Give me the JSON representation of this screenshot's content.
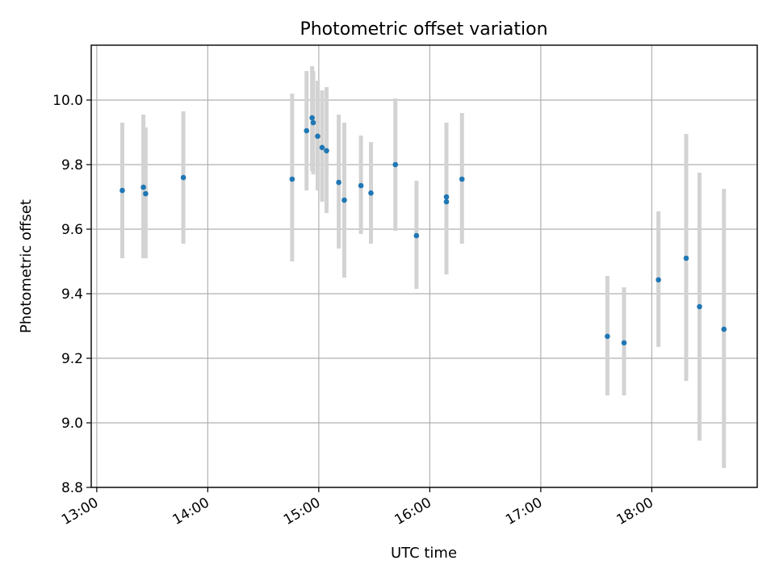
{
  "chart_data": {
    "type": "scatter",
    "title": "Photometric offset variation",
    "xlabel": "UTC time",
    "ylabel": "Photometric offset",
    "x_unit": "hours_utc",
    "xlim": [
      12.95,
      18.95
    ],
    "ylim": [
      8.8,
      10.17
    ],
    "xticks": [
      13,
      14,
      15,
      16,
      17,
      18
    ],
    "xtick_labels": [
      "13:00",
      "14:00",
      "15:00",
      "16:00",
      "17:00",
      "18:00"
    ],
    "yticks": [
      8.8,
      9.0,
      9.2,
      9.4,
      9.6,
      9.8,
      10.0
    ],
    "ytick_labels": [
      "8.8",
      "9.0",
      "9.2",
      "9.4",
      "9.6",
      "9.8",
      "10.0"
    ],
    "grid": true,
    "marker_color": "#1f77b4",
    "errorbar_color": "#d3d3d3",
    "points": [
      {
        "x": 13.23,
        "y": 9.72,
        "ylow": 9.51,
        "yhigh": 9.93
      },
      {
        "x": 13.42,
        "y": 9.73,
        "ylow": 9.51,
        "yhigh": 9.955
      },
      {
        "x": 13.44,
        "y": 9.71,
        "ylow": 9.51,
        "yhigh": 9.915
      },
      {
        "x": 13.78,
        "y": 9.76,
        "ylow": 9.555,
        "yhigh": 9.965
      },
      {
        "x": 14.76,
        "y": 9.755,
        "ylow": 9.5,
        "yhigh": 10.02
      },
      {
        "x": 14.89,
        "y": 9.905,
        "ylow": 9.72,
        "yhigh": 10.09
      },
      {
        "x": 14.94,
        "y": 9.945,
        "ylow": 9.78,
        "yhigh": 10.105
      },
      {
        "x": 14.95,
        "y": 9.93,
        "ylow": 9.77,
        "yhigh": 10.09
      },
      {
        "x": 14.99,
        "y": 9.888,
        "ylow": 9.72,
        "yhigh": 10.06
      },
      {
        "x": 15.03,
        "y": 9.853,
        "ylow": 9.685,
        "yhigh": 10.03
      },
      {
        "x": 15.07,
        "y": 9.843,
        "ylow": 9.65,
        "yhigh": 10.04
      },
      {
        "x": 15.18,
        "y": 9.745,
        "ylow": 9.54,
        "yhigh": 9.955
      },
      {
        "x": 15.23,
        "y": 9.69,
        "ylow": 9.45,
        "yhigh": 9.93
      },
      {
        "x": 15.38,
        "y": 9.735,
        "ylow": 9.585,
        "yhigh": 9.89
      },
      {
        "x": 15.47,
        "y": 9.712,
        "ylow": 9.555,
        "yhigh": 9.87
      },
      {
        "x": 15.69,
        "y": 9.8,
        "ylow": 9.595,
        "yhigh": 10.005
      },
      {
        "x": 15.88,
        "y": 9.58,
        "ylow": 9.415,
        "yhigh": 9.75
      },
      {
        "x": 16.15,
        "y": 9.685,
        "ylow": 9.46,
        "yhigh": 9.93
      },
      {
        "x": 16.15,
        "y": 9.7,
        "ylow": 9.46,
        "yhigh": 9.93
      },
      {
        "x": 16.29,
        "y": 9.755,
        "ylow": 9.555,
        "yhigh": 9.96
      },
      {
        "x": 17.6,
        "y": 9.268,
        "ylow": 9.085,
        "yhigh": 9.455
      },
      {
        "x": 17.75,
        "y": 9.248,
        "ylow": 9.085,
        "yhigh": 9.42
      },
      {
        "x": 18.06,
        "y": 9.443,
        "ylow": 9.235,
        "yhigh": 9.655
      },
      {
        "x": 18.31,
        "y": 9.51,
        "ylow": 9.13,
        "yhigh": 9.895
      },
      {
        "x": 18.43,
        "y": 9.36,
        "ylow": 8.945,
        "yhigh": 9.775
      },
      {
        "x": 18.65,
        "y": 9.29,
        "ylow": 8.86,
        "yhigh": 9.725
      }
    ]
  }
}
